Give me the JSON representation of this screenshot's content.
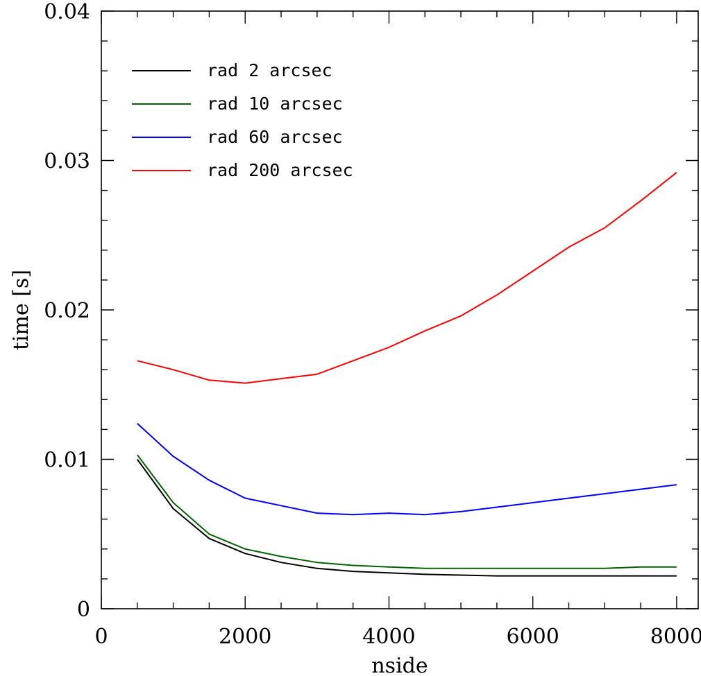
{
  "chart_data": {
    "type": "line",
    "title": "",
    "xlabel": "nside",
    "ylabel": "time [s]",
    "xlim": [
      0,
      8300
    ],
    "ylim": [
      0,
      0.04
    ],
    "x_ticks": [
      0,
      2000,
      4000,
      6000,
      8000
    ],
    "x_tick_labels": [
      "0",
      "2000",
      "4000",
      "6000",
      "8000"
    ],
    "y_ticks": [
      0,
      0.01,
      0.02,
      0.03,
      0.04
    ],
    "y_tick_labels": [
      "0",
      "0.01",
      "0.02",
      "0.03",
      "0.04"
    ],
    "legend_position": "top-left",
    "grid": false,
    "x": [
      500,
      1000,
      1500,
      2000,
      2500,
      3000,
      3500,
      4000,
      4500,
      5000,
      5500,
      6000,
      6500,
      7000,
      7500,
      8000
    ],
    "series": [
      {
        "name": "rad 2 arcsec",
        "color": "#000000",
        "values": [
          0.01,
          0.0067,
          0.0047,
          0.0037,
          0.0031,
          0.0027,
          0.0025,
          0.0024,
          0.0023,
          0.00225,
          0.0022,
          0.0022,
          0.0022,
          0.0022,
          0.0022,
          0.0022
        ]
      },
      {
        "name": "rad 10 arcsec",
        "color": "#006400",
        "values": [
          0.0103,
          0.0071,
          0.005,
          0.004,
          0.0035,
          0.0031,
          0.0029,
          0.0028,
          0.0027,
          0.0027,
          0.0027,
          0.0027,
          0.0027,
          0.0027,
          0.0028,
          0.0028
        ]
      },
      {
        "name": "rad 60 arcsec",
        "color": "#0000ff",
        "values": [
          0.0124,
          0.0102,
          0.0086,
          0.0074,
          0.0069,
          0.0064,
          0.0063,
          0.0064,
          0.0063,
          0.0065,
          0.0068,
          0.0071,
          0.0074,
          0.0077,
          0.008,
          0.0083
        ]
      },
      {
        "name": "rad 200 arcsec",
        "color": "#ff0000",
        "values": [
          0.0166,
          0.016,
          0.0153,
          0.0151,
          0.0154,
          0.0157,
          0.0166,
          0.0175,
          0.0186,
          0.0196,
          0.021,
          0.0226,
          0.0242,
          0.0255,
          0.0273,
          0.0292
        ]
      }
    ]
  }
}
